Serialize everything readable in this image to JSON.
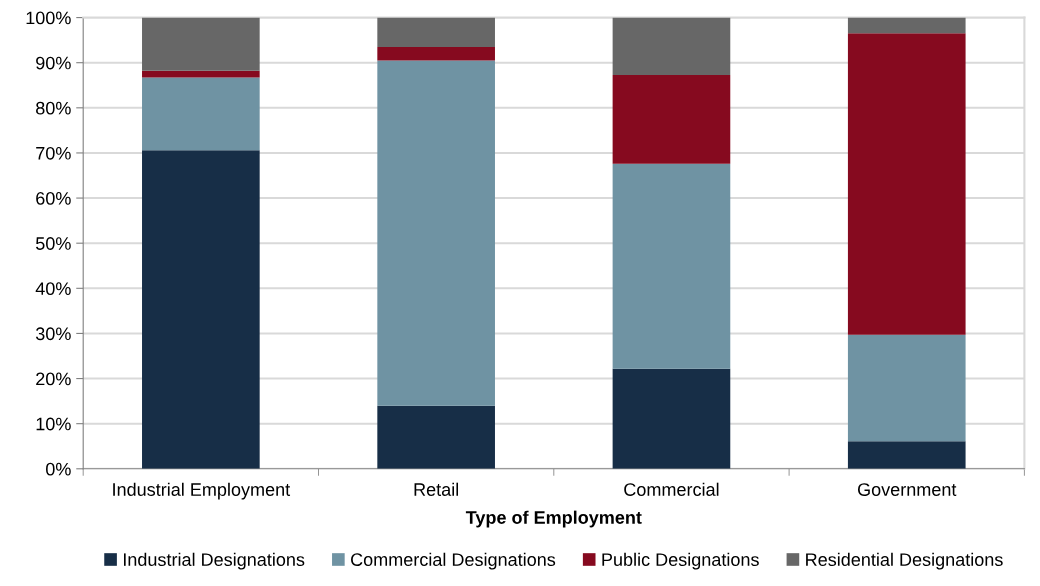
{
  "chart_data": {
    "type": "bar",
    "stacked": true,
    "xlabel": "Type of Employment",
    "categories": [
      "Industrial Employment",
      "Retail",
      "Commercial",
      "Government"
    ],
    "series": [
      {
        "name": "Industrial Designations",
        "color": "#172e47",
        "values": [
          70.6,
          14.0,
          22.2,
          6.1
        ]
      },
      {
        "name": "Commercial Designations",
        "color": "#6f93a3",
        "values": [
          16.1,
          76.5,
          45.4,
          23.6
        ]
      },
      {
        "name": "Public Designations",
        "color": "#860a1f",
        "values": [
          1.5,
          3.0,
          19.7,
          66.8
        ]
      },
      {
        "name": "Residential Designations",
        "color": "#676767",
        "values": [
          11.8,
          6.5,
          12.7,
          3.5
        ]
      }
    ],
    "ylim": [
      0,
      100
    ],
    "yticks": [
      {
        "value": 0,
        "label": "0%"
      },
      {
        "value": 10,
        "label": "10%"
      },
      {
        "value": 20,
        "label": "20%"
      },
      {
        "value": 30,
        "label": "30%"
      },
      {
        "value": 40,
        "label": "40%"
      },
      {
        "value": 50,
        "label": "50%"
      },
      {
        "value": 60,
        "label": "60%"
      },
      {
        "value": 70,
        "label": "70%"
      },
      {
        "value": 80,
        "label": "80%"
      },
      {
        "value": 90,
        "label": "90%"
      },
      {
        "value": 100,
        "label": "100%"
      }
    ],
    "grid": "y",
    "legend": "bottom"
  }
}
